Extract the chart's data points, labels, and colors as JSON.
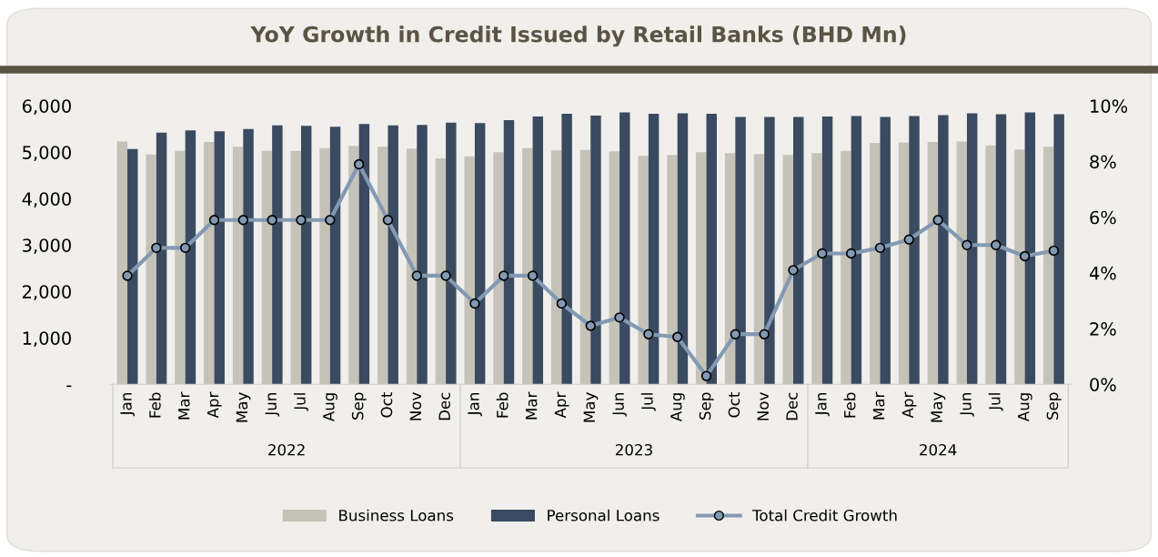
{
  "chart_data": {
    "type": "bar",
    "title": "YoY Growth in Credit Issued by Retail Banks (BHD Mn)",
    "categories": [
      "Jan",
      "Feb",
      "Mar",
      "Apr",
      "May",
      "Jun",
      "Jul",
      "Aug",
      "Sep",
      "Oct",
      "Nov",
      "Dec",
      "Jan",
      "Feb",
      "Mar",
      "Apr",
      "May",
      "Jun",
      "Jul",
      "Aug",
      "Sep",
      "Oct",
      "Nov",
      "Dec",
      "Jan",
      "Feb",
      "Mar",
      "Apr",
      "May",
      "Jun",
      "Jul",
      "Aug",
      "Sep"
    ],
    "annotations": [
      "2022",
      "2023",
      "2024"
    ],
    "series": [
      {
        "name": "Business Loans",
        "color": "#c5c3b8",
        "values": [
          5230,
          4950,
          5030,
          5220,
          5120,
          5030,
          5030,
          5090,
          5140,
          5120,
          5080,
          4870,
          4910,
          5000,
          5090,
          5040,
          5050,
          5020,
          4920,
          4940,
          5000,
          4980,
          4960,
          4940,
          4980,
          5030,
          5200,
          5210,
          5220,
          5230,
          5150,
          5060,
          5120
        ]
      },
      {
        "name": "Personal Loans",
        "color": "#3a4a60",
        "values": [
          5070,
          5420,
          5470,
          5450,
          5500,
          5580,
          5570,
          5550,
          5610,
          5580,
          5590,
          5640,
          5630,
          5690,
          5770,
          5830,
          5790,
          5860,
          5830,
          5840,
          5830,
          5760,
          5760,
          5760,
          5770,
          5780,
          5760,
          5780,
          5800,
          5840,
          5820,
          5860,
          5820
        ]
      },
      {
        "name": "Total Credit Growth",
        "type": "line",
        "axis": "y2",
        "color": "#8399b3",
        "marker": "circle",
        "values": [
          3.9,
          4.9,
          4.9,
          5.9,
          5.9,
          5.9,
          5.9,
          5.9,
          7.9,
          5.9,
          3.9,
          3.9,
          2.9,
          3.9,
          3.9,
          2.9,
          2.1,
          2.4,
          1.8,
          1.7,
          0.3,
          1.8,
          1.8,
          4.1,
          4.7,
          4.7,
          4.9,
          5.2,
          5.9,
          5.0,
          5.0,
          4.6,
          4.8
        ]
      }
    ],
    "ylim": [
      0,
      6000
    ],
    "yticks": [
      {
        "value": 0,
        "label": "-"
      },
      {
        "value": 1000,
        "label": "1,000"
      },
      {
        "value": 2000,
        "label": "2,000"
      },
      {
        "value": 3000,
        "label": "3,000"
      },
      {
        "value": 4000,
        "label": "4,000"
      },
      {
        "value": 5000,
        "label": "5,000"
      },
      {
        "value": 6000,
        "label": "6,000"
      }
    ],
    "y2lim": [
      0,
      10
    ],
    "y2ticks": [
      {
        "value": 0,
        "label": "0%"
      },
      {
        "value": 2,
        "label": "2%"
      },
      {
        "value": 4,
        "label": "4%"
      },
      {
        "value": 6,
        "label": "6%"
      },
      {
        "value": 8,
        "label": "8%"
      },
      {
        "value": 10,
        "label": "10%"
      }
    ],
    "grid": false,
    "legend": "bottom"
  }
}
